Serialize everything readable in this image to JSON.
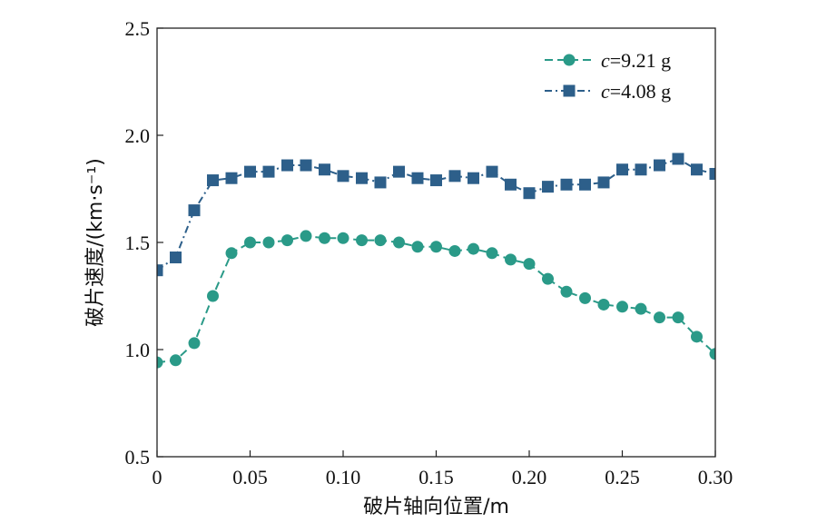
{
  "chart_data": {
    "type": "line",
    "xlabel": "破片轴向位置/m",
    "ylabel": "破片速度/(km·s⁻¹)",
    "xlim": [
      0,
      0.3
    ],
    "ylim": [
      0.5,
      2.5
    ],
    "xticks": [
      0,
      0.05,
      0.1,
      0.15,
      0.2,
      0.25,
      0.3
    ],
    "xtick_labels": [
      "0",
      "0.05",
      "0.10",
      "0.15",
      "0.20",
      "0.25",
      "0.30"
    ],
    "yticks": [
      0.5,
      1.0,
      1.5,
      2.0,
      2.5
    ],
    "ytick_labels": [
      "0.5",
      "1.0",
      "1.5",
      "2.0",
      "2.5"
    ],
    "grid": false,
    "legend_position": "top-right",
    "series": [
      {
        "name": "c=9.21 g",
        "label_var": "c",
        "label_rest": "=9.21 g",
        "color": "#2a9a88",
        "marker": "circle",
        "dash": "dashed",
        "x": [
          0,
          0.01,
          0.02,
          0.03,
          0.04,
          0.05,
          0.06,
          0.07,
          0.08,
          0.09,
          0.1,
          0.11,
          0.12,
          0.13,
          0.14,
          0.15,
          0.16,
          0.17,
          0.18,
          0.19,
          0.2,
          0.21,
          0.22,
          0.23,
          0.24,
          0.25,
          0.26,
          0.27,
          0.28,
          0.29,
          0.3
        ],
        "values": [
          0.94,
          0.95,
          1.03,
          1.25,
          1.45,
          1.5,
          1.5,
          1.51,
          1.53,
          1.52,
          1.52,
          1.51,
          1.51,
          1.5,
          1.48,
          1.48,
          1.46,
          1.47,
          1.45,
          1.42,
          1.4,
          1.33,
          1.27,
          1.24,
          1.21,
          1.2,
          1.19,
          1.15,
          1.15,
          1.06,
          0.98
        ]
      },
      {
        "name": "c=4.08 g",
        "label_var": "c",
        "label_rest": "=4.08 g",
        "color": "#2d5f8a",
        "marker": "square",
        "dash": "dashdot",
        "x": [
          0,
          0.01,
          0.02,
          0.03,
          0.04,
          0.05,
          0.06,
          0.07,
          0.08,
          0.09,
          0.1,
          0.11,
          0.12,
          0.13,
          0.14,
          0.15,
          0.16,
          0.17,
          0.18,
          0.19,
          0.2,
          0.21,
          0.22,
          0.23,
          0.24,
          0.25,
          0.26,
          0.27,
          0.28,
          0.29,
          0.3
        ],
        "values": [
          1.37,
          1.43,
          1.65,
          1.79,
          1.8,
          1.83,
          1.83,
          1.86,
          1.86,
          1.84,
          1.81,
          1.8,
          1.78,
          1.83,
          1.8,
          1.79,
          1.81,
          1.8,
          1.83,
          1.77,
          1.73,
          1.76,
          1.77,
          1.77,
          1.78,
          1.84,
          1.84,
          1.86,
          1.89,
          1.84,
          1.82
        ]
      }
    ]
  }
}
